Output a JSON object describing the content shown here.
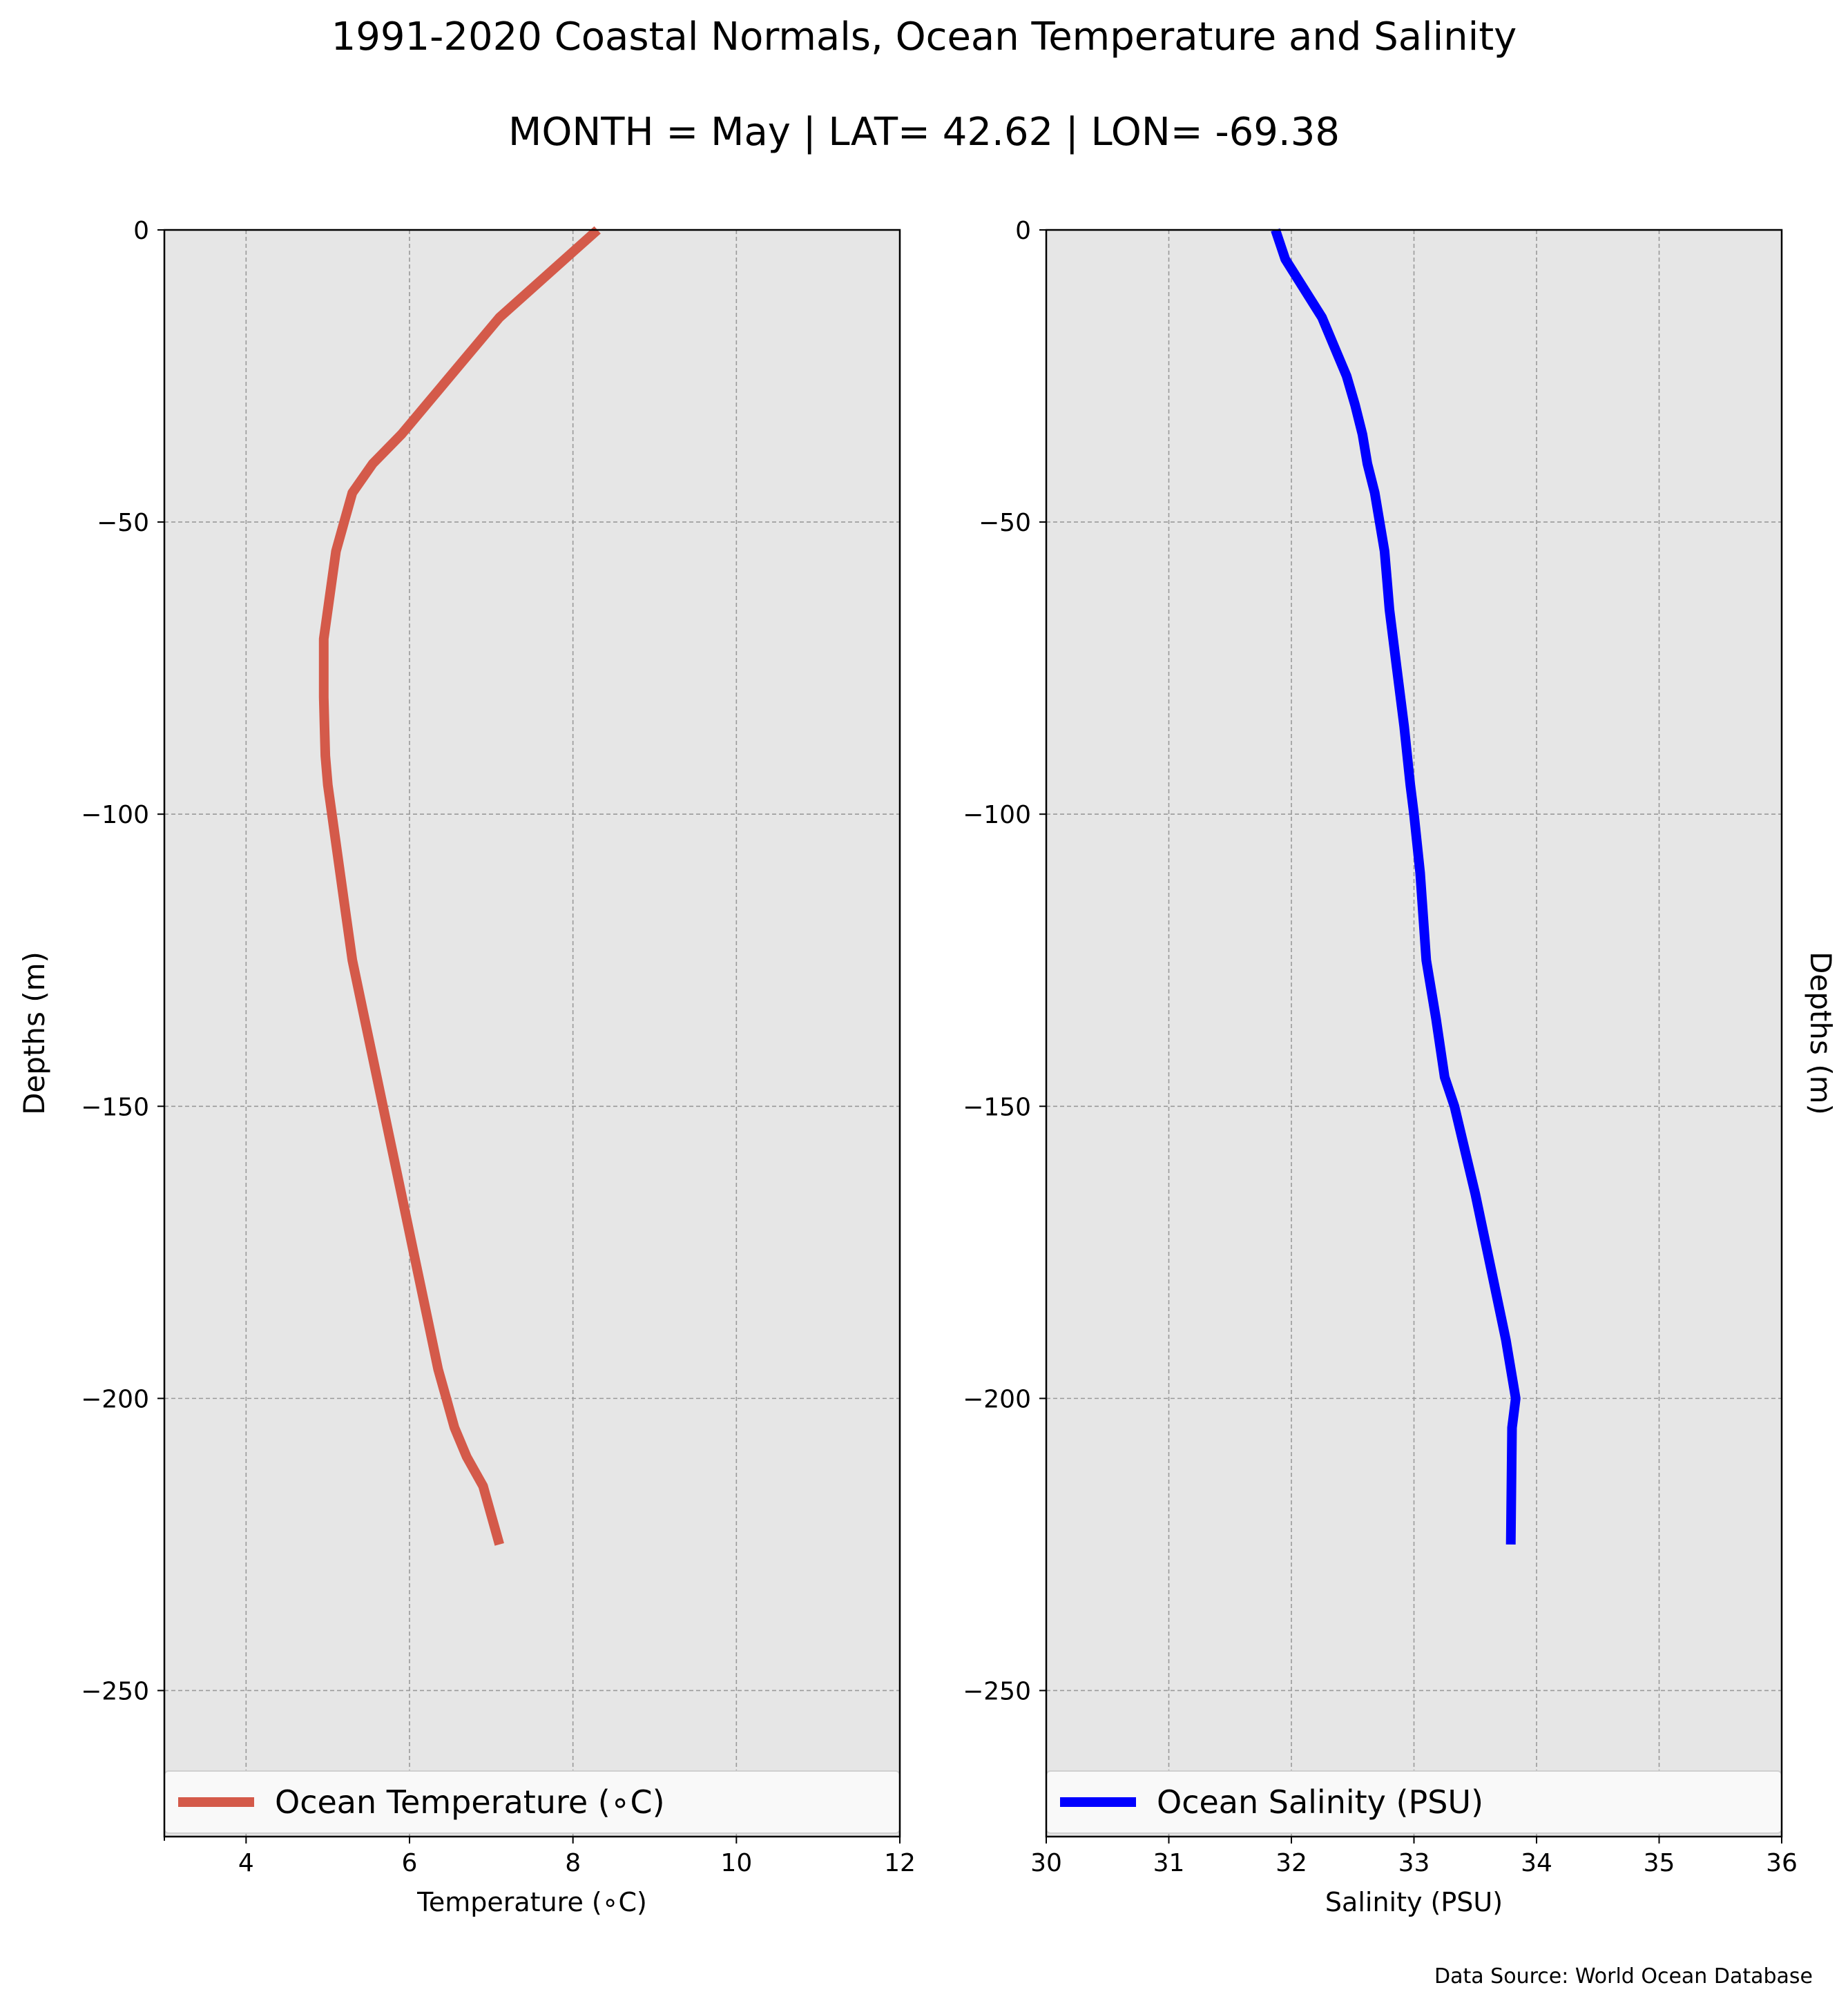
{
  "figure": {
    "title": "1991-2020 Coastal Normals, Ocean Temperature and Salinity",
    "subtitle": "MONTH = May | LAT= 42.62 | LON= -69.38",
    "source": "Data Source: World Ocean Database"
  },
  "colors": {
    "temperature": "#d45a4a",
    "salinity": "#0000ff",
    "plot_background": "#e6e6e6",
    "grid": "#9a9a9a"
  },
  "chart_data": [
    {
      "type": "line",
      "orientation": "vertical-profile",
      "xlabel": "Temperature (∘C)",
      "ylabel": "Depths (m)",
      "xlim": [
        3,
        12
      ],
      "ylim": [
        -275,
        0
      ],
      "xticks": [
        "4",
        "6",
        "8",
        "10",
        "12"
      ],
      "yticks": [
        "0",
        "−50",
        "−100",
        "−150",
        "−200",
        "−250"
      ],
      "grid": true,
      "legend_position": "bottom",
      "series": [
        {
          "name": "Ocean Temperature (∘C)",
          "x": [
            8.3,
            7.9,
            7.5,
            7.1,
            6.8,
            6.5,
            6.2,
            5.9,
            5.55,
            5.3,
            5.2,
            5.1,
            5.05,
            5.0,
            4.95,
            4.95,
            4.95,
            4.96,
            4.97,
            5.0,
            5.05,
            5.1,
            5.15,
            5.2,
            5.3,
            5.45,
            5.6,
            5.75,
            5.9,
            6.05,
            6.2,
            6.35,
            6.45,
            6.55,
            6.7,
            6.9,
            7.1
          ],
          "y": [
            0,
            -5,
            -10,
            -15,
            -20,
            -25,
            -30,
            -35,
            -40,
            -45,
            -50,
            -55,
            -60,
            -65,
            -70,
            -75,
            -80,
            -85,
            -90,
            -95,
            -100,
            -105,
            -110,
            -115,
            -125,
            -135,
            -145,
            -155,
            -165,
            -175,
            -185,
            -195,
            -200,
            -205,
            -210,
            -215,
            -225
          ]
        }
      ]
    },
    {
      "type": "line",
      "orientation": "vertical-profile",
      "xlabel": "Salinity (PSU)",
      "ylabel": "Depths (m)",
      "xlim": [
        30,
        36
      ],
      "ylim": [
        -275,
        0
      ],
      "xticks": [
        "30",
        "31",
        "32",
        "33",
        "34",
        "35",
        "36"
      ],
      "yticks": [
        "0",
        "−50",
        "−100",
        "−150",
        "−200",
        "−250"
      ],
      "grid": true,
      "legend_position": "bottom",
      "series": [
        {
          "name": "Ocean Salinity (PSU)",
          "x": [
            31.87,
            31.95,
            32.1,
            32.25,
            32.35,
            32.45,
            32.52,
            32.58,
            32.62,
            32.68,
            32.72,
            32.76,
            32.78,
            32.8,
            32.86,
            32.92,
            32.97,
            33.0,
            33.05,
            33.1,
            33.18,
            33.25,
            33.33,
            33.5,
            33.65,
            33.75,
            33.83,
            33.8,
            33.79
          ],
          "y": [
            0,
            -5,
            -10,
            -15,
            -20,
            -25,
            -30,
            -35,
            -40,
            -45,
            -50,
            -55,
            -60,
            -65,
            -75,
            -85,
            -95,
            -100,
            -110,
            -125,
            -135,
            -145,
            -150,
            -165,
            -180,
            -190,
            -200,
            -205,
            -225
          ]
        }
      ]
    }
  ]
}
